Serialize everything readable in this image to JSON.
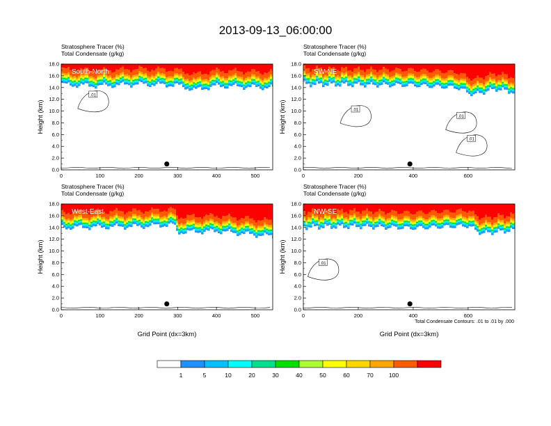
{
  "figure": {
    "title": "2013-09-13_06:00:00",
    "footnote": "Total Condensate Contours: .01 to .01 by .000"
  },
  "colorbar": {
    "labels": [
      "1",
      "5",
      "10",
      "20",
      "30",
      "40",
      "50",
      "60",
      "70",
      "100"
    ],
    "colors": [
      "#ffffff",
      "#1e90ff",
      "#00bfff",
      "#00ffff",
      "#00e08a",
      "#00e000",
      "#adff2f",
      "#ffff00",
      "#ffd700",
      "#ffa500",
      "#ff5a00",
      "#ff0000"
    ]
  },
  "chart_data": [
    {
      "type": "heatmap",
      "panel": "South-North",
      "label1": "Stratosphere Tracer   (%)",
      "label2": "Total Condensate   (g/kg)",
      "ylabel": "Height (km)",
      "xlabel": "",
      "xlim": [
        0,
        545
      ],
      "ylim": [
        0,
        18
      ],
      "xticks": [
        "0",
        "100",
        "200",
        "300",
        "400",
        "500"
      ],
      "xtick_values": [
        0,
        100,
        200,
        300,
        400,
        500
      ],
      "yticks": [
        "0.0",
        "2.0",
        "4.0",
        "6.0",
        "8.0",
        "10.0",
        "12.0",
        "14.0",
        "16.0",
        "18.0"
      ],
      "tropopause_km": [
        [
          0,
          14.5
        ],
        [
          100,
          14.3
        ],
        [
          200,
          14.6
        ],
        [
          300,
          14.4
        ],
        [
          345,
          13.6
        ],
        [
          400,
          14.3
        ],
        [
          545,
          14.0
        ]
      ],
      "marker": {
        "x": 272,
        "y_km": 1.0
      },
      "contour_labels": [
        {
          "text": ".01",
          "x": 82,
          "y_km": 12.8
        }
      ]
    },
    {
      "type": "heatmap",
      "panel": "SW-NE",
      "label1": "Stratosphere Tracer   (%)",
      "label2": "Total Condensate   (g/kg)",
      "ylabel": "Height (km)",
      "xlabel": "",
      "xlim": [
        0,
        770
      ],
      "ylim": [
        0,
        18
      ],
      "xticks": [
        "0",
        "200",
        "400",
        "600"
      ],
      "xtick_values": [
        0,
        200,
        400,
        600
      ],
      "yticks": [
        "0.0",
        "2.0",
        "4.0",
        "6.0",
        "8.0",
        "10.0",
        "12.0",
        "14.0",
        "16.0",
        "18.0"
      ],
      "tropopause_km": [
        [
          0,
          14.6
        ],
        [
          200,
          14.5
        ],
        [
          400,
          14.4
        ],
        [
          560,
          14.0
        ],
        [
          620,
          12.8
        ],
        [
          700,
          13.8
        ],
        [
          770,
          13.2
        ]
      ],
      "marker": {
        "x": 388,
        "y_km": 1.0
      },
      "contour_labels": [
        {
          "text": ".01",
          "x": 190,
          "y_km": 10.3
        },
        {
          "text": ".01",
          "x": 574,
          "y_km": 9.2
        },
        {
          "text": ".01",
          "x": 612,
          "y_km": 5.3
        }
      ]
    },
    {
      "type": "heatmap",
      "panel": "West-East",
      "label1": "Stratosphere Tracer   (%)",
      "label2": "Total Condensate   (g/kg)",
      "ylabel": "Height (km)",
      "xlabel": "Grid Point (dx=3km)",
      "xlim": [
        0,
        545
      ],
      "ylim": [
        0,
        18
      ],
      "xticks": [
        "0",
        "100",
        "200",
        "300",
        "400",
        "500"
      ],
      "xtick_values": [
        0,
        100,
        200,
        300,
        400,
        500
      ],
      "yticks": [
        "0.0",
        "2.0",
        "4.0",
        "6.0",
        "8.0",
        "10.0",
        "12.0",
        "14.0",
        "16.0",
        "18.0"
      ],
      "tropopause_km": [
        [
          0,
          14.0
        ],
        [
          200,
          14.2
        ],
        [
          290,
          14.5
        ],
        [
          300,
          13.2
        ],
        [
          400,
          13.4
        ],
        [
          545,
          12.5
        ]
      ],
      "marker": {
        "x": 272,
        "y_km": 1.0
      },
      "contour_labels": []
    },
    {
      "type": "heatmap",
      "panel": "NW-SE",
      "label1": "Stratosphere Tracer   (%)",
      "label2": "Total Condensate   (g/kg)",
      "ylabel": "Height (km)",
      "xlabel": "Grid Point (dx=3km)",
      "xlim": [
        0,
        770
      ],
      "ylim": [
        0,
        18
      ],
      "xticks": [
        "0",
        "200",
        "400",
        "600"
      ],
      "xtick_values": [
        0,
        200,
        400,
        600
      ],
      "yticks": [
        "0.0",
        "2.0",
        "4.0",
        "6.0",
        "8.0",
        "10.0",
        "12.0",
        "14.0",
        "16.0",
        "18.0"
      ],
      "tropopause_km": [
        [
          0,
          14.1
        ],
        [
          200,
          14.2
        ],
        [
          400,
          13.9
        ],
        [
          600,
          14.3
        ],
        [
          650,
          13.0
        ],
        [
          770,
          13.6
        ]
      ],
      "marker": {
        "x": 388,
        "y_km": 1.0
      },
      "contour_labels": [
        {
          "text": ".01",
          "x": 72,
          "y_km": 8.0
        }
      ]
    }
  ]
}
